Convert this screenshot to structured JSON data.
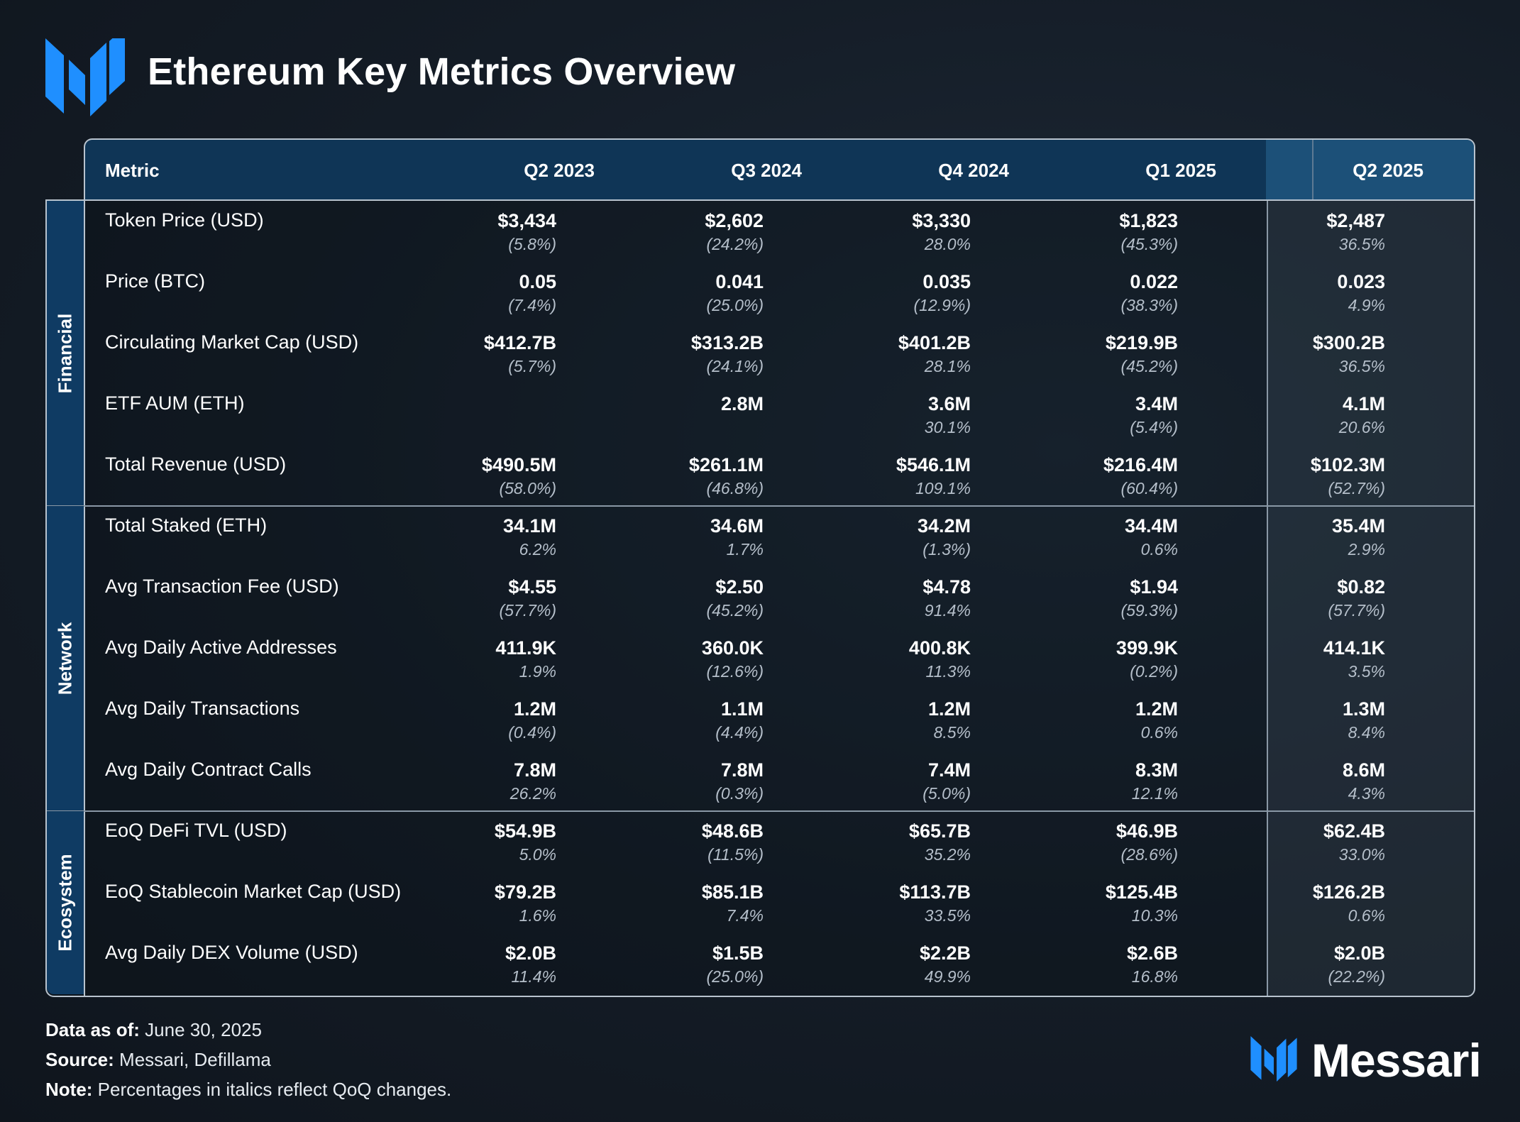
{
  "title": "Ethereum Key Metrics Overview",
  "colors": {
    "accent": "#1f8fff",
    "header": "#0f3556",
    "section": "#0f3b63"
  },
  "header": {
    "metric_label": "Metric",
    "quarters": [
      "Q2 2023",
      "Q3 2024",
      "Q4 2024",
      "Q1 2025",
      "Q2 2025"
    ]
  },
  "sections": [
    {
      "name": "Financial",
      "rows": [
        {
          "metric": "Token Price (USD)",
          "cells": [
            {
              "v": "$3,434",
              "c": "(5.8%)"
            },
            {
              "v": "$2,602",
              "c": "(24.2%)"
            },
            {
              "v": "$3,330",
              "c": "28.0%"
            },
            {
              "v": "$1,823",
              "c": "(45.3%)"
            },
            {
              "v": "$2,487",
              "c": "36.5%"
            }
          ]
        },
        {
          "metric": "Price (BTC)",
          "cells": [
            {
              "v": "0.05",
              "c": "(7.4%)"
            },
            {
              "v": "0.041",
              "c": "(25.0%)"
            },
            {
              "v": "0.035",
              "c": "(12.9%)"
            },
            {
              "v": "0.022",
              "c": "(38.3%)"
            },
            {
              "v": "0.023",
              "c": "4.9%"
            }
          ]
        },
        {
          "metric": "Circulating Market Cap (USD)",
          "cells": [
            {
              "v": "$412.7B",
              "c": "(5.7%)"
            },
            {
              "v": "$313.2B",
              "c": "(24.1%)"
            },
            {
              "v": "$401.2B",
              "c": "28.1%"
            },
            {
              "v": "$219.9B",
              "c": "(45.2%)"
            },
            {
              "v": "$300.2B",
              "c": "36.5%"
            }
          ]
        },
        {
          "metric": "ETF AUM (ETH)",
          "cells": [
            {
              "v": "",
              "c": ""
            },
            {
              "v": "2.8M",
              "c": ""
            },
            {
              "v": "3.6M",
              "c": "30.1%"
            },
            {
              "v": "3.4M",
              "c": "(5.4%)"
            },
            {
              "v": "4.1M",
              "c": "20.6%"
            }
          ]
        },
        {
          "metric": "Total Revenue (USD)",
          "cells": [
            {
              "v": "$490.5M",
              "c": "(58.0%)"
            },
            {
              "v": "$261.1M",
              "c": "(46.8%)"
            },
            {
              "v": "$546.1M",
              "c": "109.1%"
            },
            {
              "v": "$216.4M",
              "c": "(60.4%)"
            },
            {
              "v": "$102.3M",
              "c": "(52.7%)"
            }
          ]
        }
      ]
    },
    {
      "name": "Network",
      "rows": [
        {
          "metric": "Total Staked (ETH)",
          "cells": [
            {
              "v": "34.1M",
              "c": "6.2%"
            },
            {
              "v": "34.6M",
              "c": "1.7%"
            },
            {
              "v": "34.2M",
              "c": "(1.3%)"
            },
            {
              "v": "34.4M",
              "c": "0.6%"
            },
            {
              "v": "35.4M",
              "c": "2.9%"
            }
          ]
        },
        {
          "metric": "Avg Transaction Fee (USD)",
          "cells": [
            {
              "v": "$4.55",
              "c": "(57.7%)"
            },
            {
              "v": "$2.50",
              "c": "(45.2%)"
            },
            {
              "v": "$4.78",
              "c": "91.4%"
            },
            {
              "v": "$1.94",
              "c": "(59.3%)"
            },
            {
              "v": "$0.82",
              "c": "(57.7%)"
            }
          ]
        },
        {
          "metric": "Avg Daily Active Addresses",
          "cells": [
            {
              "v": "411.9K",
              "c": "1.9%"
            },
            {
              "v": "360.0K",
              "c": "(12.6%)"
            },
            {
              "v": "400.8K",
              "c": "11.3%"
            },
            {
              "v": "399.9K",
              "c": "(0.2%)"
            },
            {
              "v": "414.1K",
              "c": "3.5%"
            }
          ]
        },
        {
          "metric": "Avg Daily Transactions",
          "cells": [
            {
              "v": "1.2M",
              "c": "(0.4%)"
            },
            {
              "v": "1.1M",
              "c": "(4.4%)"
            },
            {
              "v": "1.2M",
              "c": "8.5%"
            },
            {
              "v": "1.2M",
              "c": "0.6%"
            },
            {
              "v": "1.3M",
              "c": "8.4%"
            }
          ]
        },
        {
          "metric": "Avg Daily Contract Calls",
          "cells": [
            {
              "v": "7.8M",
              "c": "26.2%"
            },
            {
              "v": "7.8M",
              "c": "(0.3%)"
            },
            {
              "v": "7.4M",
              "c": "(5.0%)"
            },
            {
              "v": "8.3M",
              "c": "12.1%"
            },
            {
              "v": "8.6M",
              "c": "4.3%"
            }
          ]
        }
      ]
    },
    {
      "name": "Ecosystem",
      "rows": [
        {
          "metric": "EoQ DeFi TVL (USD)",
          "cells": [
            {
              "v": "$54.9B",
              "c": "5.0%"
            },
            {
              "v": "$48.6B",
              "c": "(11.5%)"
            },
            {
              "v": "$65.7B",
              "c": "35.2%"
            },
            {
              "v": "$46.9B",
              "c": "(28.6%)"
            },
            {
              "v": "$62.4B",
              "c": "33.0%"
            }
          ]
        },
        {
          "metric": "EoQ Stablecoin Market Cap (USD)",
          "cells": [
            {
              "v": "$79.2B",
              "c": "1.6%"
            },
            {
              "v": "$85.1B",
              "c": "7.4%"
            },
            {
              "v": "$113.7B",
              "c": "33.5%"
            },
            {
              "v": "$125.4B",
              "c": "10.3%"
            },
            {
              "v": "$126.2B",
              "c": "0.6%"
            }
          ]
        },
        {
          "metric": "Avg Daily DEX Volume (USD)",
          "cells": [
            {
              "v": "$2.0B",
              "c": "11.4%"
            },
            {
              "v": "$1.5B",
              "c": "(25.0%)"
            },
            {
              "v": "$2.2B",
              "c": "49.9%"
            },
            {
              "v": "$2.6B",
              "c": "16.8%"
            },
            {
              "v": "$2.0B",
              "c": "(22.2%)"
            }
          ]
        }
      ]
    }
  ],
  "footer": {
    "data_as_of_label": "Data as of:",
    "data_as_of": " June 30, 2025",
    "source_label": "Source:",
    "source": " Messari, Defillama",
    "note_label": "Note:",
    "note": " Percentages in italics reflect QoQ changes."
  },
  "brand": "Messari"
}
